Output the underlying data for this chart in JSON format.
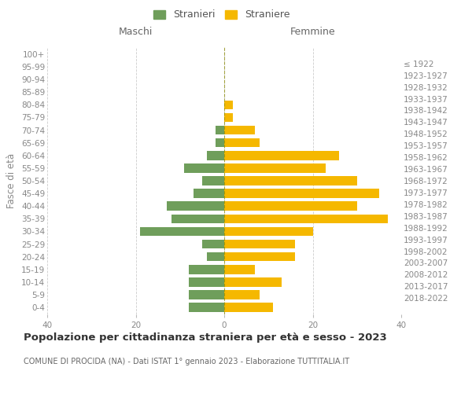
{
  "age_groups": [
    "0-4",
    "5-9",
    "10-14",
    "15-19",
    "20-24",
    "25-29",
    "30-34",
    "35-39",
    "40-44",
    "45-49",
    "50-54",
    "55-59",
    "60-64",
    "65-69",
    "70-74",
    "75-79",
    "80-84",
    "85-89",
    "90-94",
    "95-99",
    "100+"
  ],
  "birth_years": [
    "2018-2022",
    "2013-2017",
    "2008-2012",
    "2003-2007",
    "1998-2002",
    "1993-1997",
    "1988-1992",
    "1983-1987",
    "1978-1982",
    "1973-1977",
    "1968-1972",
    "1963-1967",
    "1958-1962",
    "1953-1957",
    "1948-1952",
    "1943-1947",
    "1938-1942",
    "1933-1937",
    "1928-1932",
    "1923-1927",
    "≤ 1922"
  ],
  "maschi": [
    8,
    8,
    8,
    8,
    4,
    5,
    19,
    12,
    13,
    7,
    5,
    9,
    4,
    2,
    2,
    0,
    0,
    0,
    0,
    0,
    0
  ],
  "femmine": [
    11,
    8,
    13,
    7,
    16,
    16,
    20,
    37,
    30,
    35,
    30,
    23,
    26,
    8,
    7,
    2,
    2,
    0,
    0,
    0,
    0
  ],
  "color_maschi": "#6f9e5b",
  "color_femmine": "#f5b800",
  "title": "Popolazione per cittadinanza straniera per età e sesso - 2023",
  "subtitle": "COMUNE DI PROCIDA (NA) - Dati ISTAT 1° gennaio 2023 - Elaborazione TUTTITALIA.IT",
  "ylabel_left": "Fasce di età",
  "xlabel_maschi": "Maschi",
  "xlabel_femmine": "Femmine",
  "xlim": 40,
  "legend_stranieri": "Stranieri",
  "legend_straniere": "Straniere",
  "bg_color": "#ffffff",
  "grid_color": "#cccccc",
  "bar_height": 0.72,
  "title_fontsize": 9.5,
  "subtitle_fontsize": 7.0,
  "label_fontsize": 8.5,
  "tick_fontsize": 7.5,
  "legend_fontsize": 9
}
